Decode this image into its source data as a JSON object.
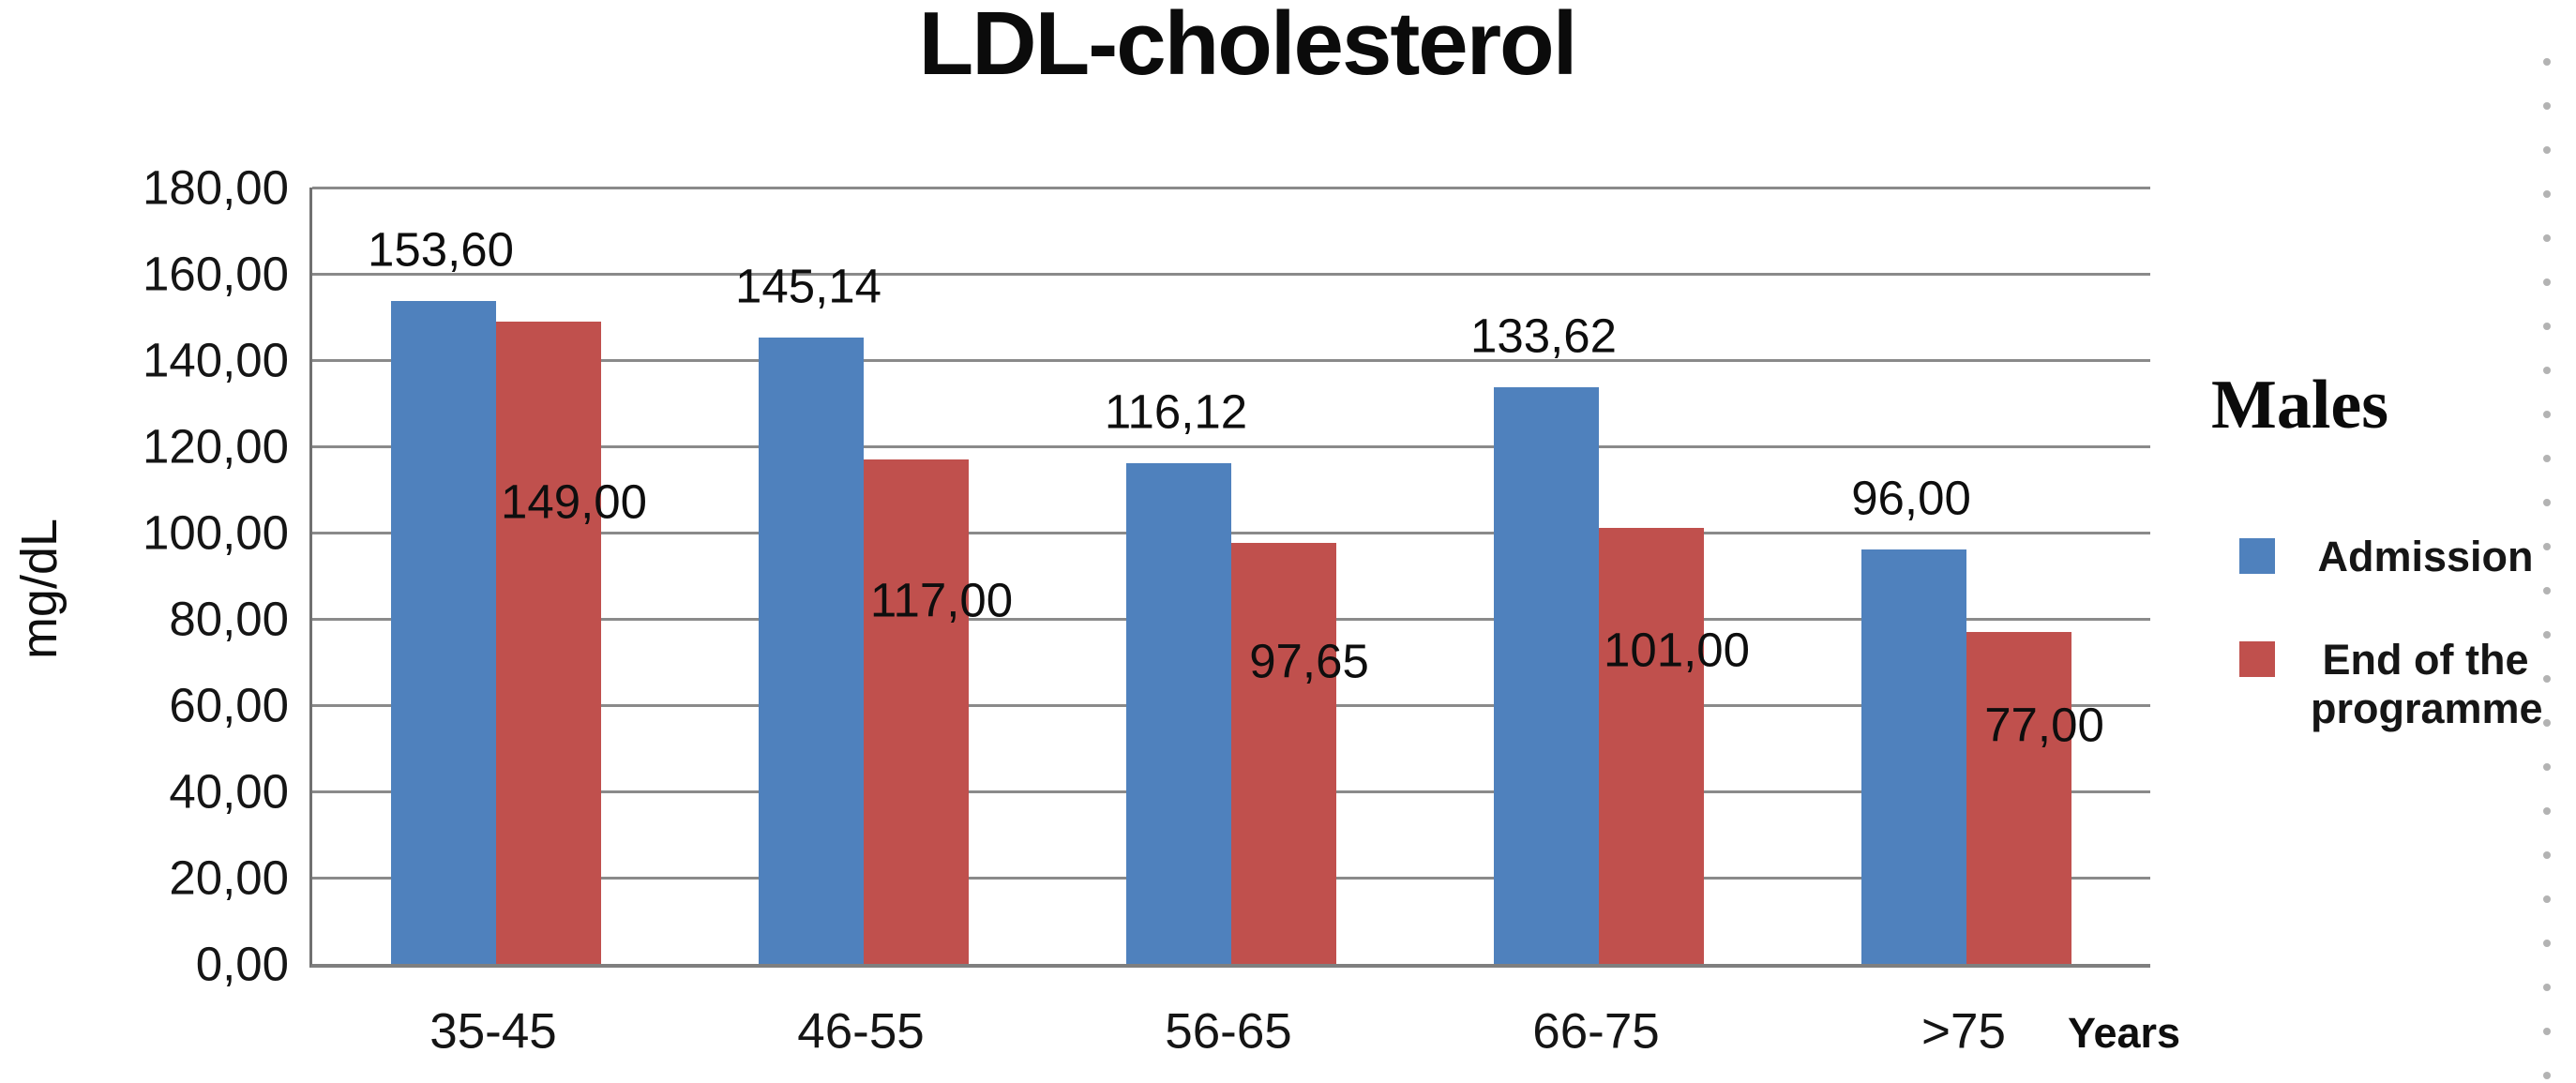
{
  "page": {
    "background": "#ffffff"
  },
  "chart_data": {
    "type": "bar",
    "title": "LDL-cholesterol",
    "ylabel": "mg/dL",
    "xlabel": "Years",
    "categories": [
      "35-45",
      "46-55",
      "56-65",
      "66-75",
      ">75"
    ],
    "series": [
      {
        "name": "Admission",
        "color": "#4f81bd",
        "values": [
          153.6,
          145.14,
          116.12,
          133.62,
          96.0
        ],
        "labels": [
          "153,60",
          "145,14",
          "116,12",
          "133,62",
          "96,00"
        ]
      },
      {
        "name": "End of the programme",
        "color": "#c0504d",
        "values": [
          149.0,
          117.0,
          97.65,
          101.0,
          77.0
        ],
        "labels": [
          "149,00",
          "117,00",
          "97,65",
          "101,00",
          "77,00"
        ]
      }
    ],
    "ylim": [
      0,
      180
    ],
    "ytick_step": 20,
    "ytick_labels": [
      "180,00",
      "160,00",
      "140,00",
      "120,00",
      "100,00",
      "80,00",
      "60,00",
      "40,00",
      "20,00",
      "0,00"
    ],
    "grid": true,
    "gridline_color": "#8a8a8a",
    "legend_position": "right",
    "legend": {
      "title": "Males",
      "entries": [
        {
          "label": "Admission",
          "color": "#4f81bd"
        },
        {
          "label": "End of the programme",
          "color": "#c0504d"
        }
      ]
    }
  },
  "decor": {
    "dot_count": 24,
    "dot_color": "#b3b3b3"
  }
}
